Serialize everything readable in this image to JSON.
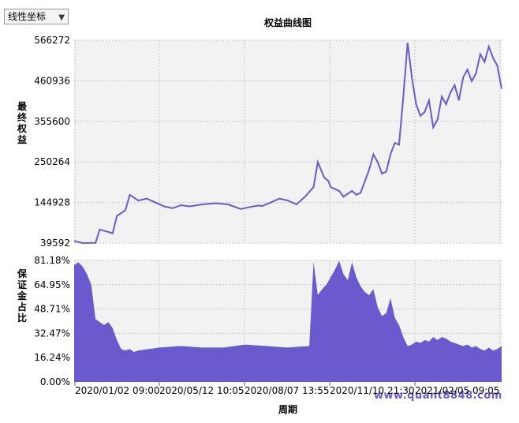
{
  "scale_select": {
    "value": "线性坐标"
  },
  "chart_data": [
    {
      "type": "line",
      "title": "权益曲线图",
      "ylabel": "最终权益",
      "xlabel": "周期",
      "y_ticks": [
        "566272",
        "460936",
        "355600",
        "250264",
        "144928",
        "39592"
      ],
      "x_ticks": [
        "2020/01/02 09:00",
        "2020/05/12 10:05",
        "2020/08/07 13:55",
        "2020/11/10 21:30",
        "2021/02/05 09:05"
      ],
      "ylim": [
        39592,
        566272
      ],
      "grid": true,
      "color": "#6a5acd",
      "x": [
        0,
        0.02,
        0.05,
        0.06,
        0.09,
        0.1,
        0.12,
        0.13,
        0.15,
        0.17,
        0.19,
        0.21,
        0.23,
        0.25,
        0.27,
        0.3,
        0.33,
        0.36,
        0.39,
        0.41,
        0.43,
        0.44,
        0.46,
        0.48,
        0.5,
        0.52,
        0.54,
        0.56,
        0.57,
        0.585,
        0.595,
        0.6,
        0.62,
        0.63,
        0.65,
        0.66,
        0.67,
        0.68,
        0.69,
        0.7,
        0.71,
        0.72,
        0.73,
        0.74,
        0.75,
        0.76,
        0.77,
        0.78,
        0.79,
        0.8,
        0.81,
        0.82,
        0.83,
        0.84,
        0.85,
        0.86,
        0.87,
        0.88,
        0.89,
        0.9,
        0.91,
        0.92,
        0.93,
        0.94,
        0.95,
        0.96,
        0.97,
        0.98,
        0.99,
        1.0
      ],
      "values": [
        45000,
        38000,
        40000,
        75000,
        65000,
        110000,
        125000,
        165000,
        150000,
        155000,
        145000,
        135000,
        130000,
        138000,
        135000,
        140000,
        143000,
        140000,
        128000,
        133000,
        137000,
        136000,
        145000,
        155000,
        150000,
        140000,
        160000,
        185000,
        250000,
        210000,
        200000,
        185000,
        175000,
        160000,
        175000,
        165000,
        170000,
        200000,
        230000,
        270000,
        250000,
        220000,
        225000,
        270000,
        300000,
        295000,
        420000,
        560000,
        470000,
        400000,
        370000,
        380000,
        410000,
        340000,
        360000,
        420000,
        400000,
        430000,
        450000,
        410000,
        470000,
        490000,
        460000,
        480000,
        530000,
        510000,
        550000,
        520000,
        500000,
        440000
      ]
    },
    {
      "type": "area",
      "ylabel": "保证金占比",
      "y_ticks": [
        "81.18%",
        "64.95%",
        "48.71%",
        "32.47%",
        "16.24%",
        "0.00%"
      ],
      "ylim": [
        0,
        81.18
      ],
      "grid": true,
      "color": "#6a5acd",
      "x": [
        0,
        0.01,
        0.02,
        0.03,
        0.04,
        0.05,
        0.06,
        0.07,
        0.08,
        0.09,
        0.1,
        0.11,
        0.12,
        0.13,
        0.14,
        0.15,
        0.2,
        0.25,
        0.3,
        0.35,
        0.4,
        0.45,
        0.5,
        0.55,
        0.56,
        0.57,
        0.58,
        0.59,
        0.6,
        0.61,
        0.62,
        0.63,
        0.64,
        0.65,
        0.66,
        0.67,
        0.68,
        0.69,
        0.7,
        0.71,
        0.72,
        0.73,
        0.74,
        0.75,
        0.76,
        0.77,
        0.78,
        0.79,
        0.8,
        0.81,
        0.82,
        0.83,
        0.84,
        0.85,
        0.86,
        0.87,
        0.88,
        0.89,
        0.9,
        0.91,
        0.92,
        0.93,
        0.94,
        0.95,
        0.96,
        0.97,
        0.98,
        0.99,
        1.0
      ],
      "values": [
        78,
        80,
        77,
        72,
        65,
        42,
        40,
        38,
        40,
        36,
        28,
        22,
        21,
        22,
        20,
        21,
        23,
        24,
        23,
        23,
        25,
        24,
        23,
        24,
        80,
        58,
        62,
        65,
        70,
        75,
        81,
        72,
        68,
        80,
        70,
        64,
        60,
        58,
        62,
        50,
        44,
        46,
        56,
        43,
        38,
        30,
        24,
        25,
        27,
        26,
        28,
        27,
        30,
        28,
        30,
        29,
        27,
        26,
        25,
        24,
        25,
        23,
        24,
        22,
        21,
        23,
        21,
        22,
        24
      ]
    }
  ],
  "watermark": "www.quant8848.com"
}
